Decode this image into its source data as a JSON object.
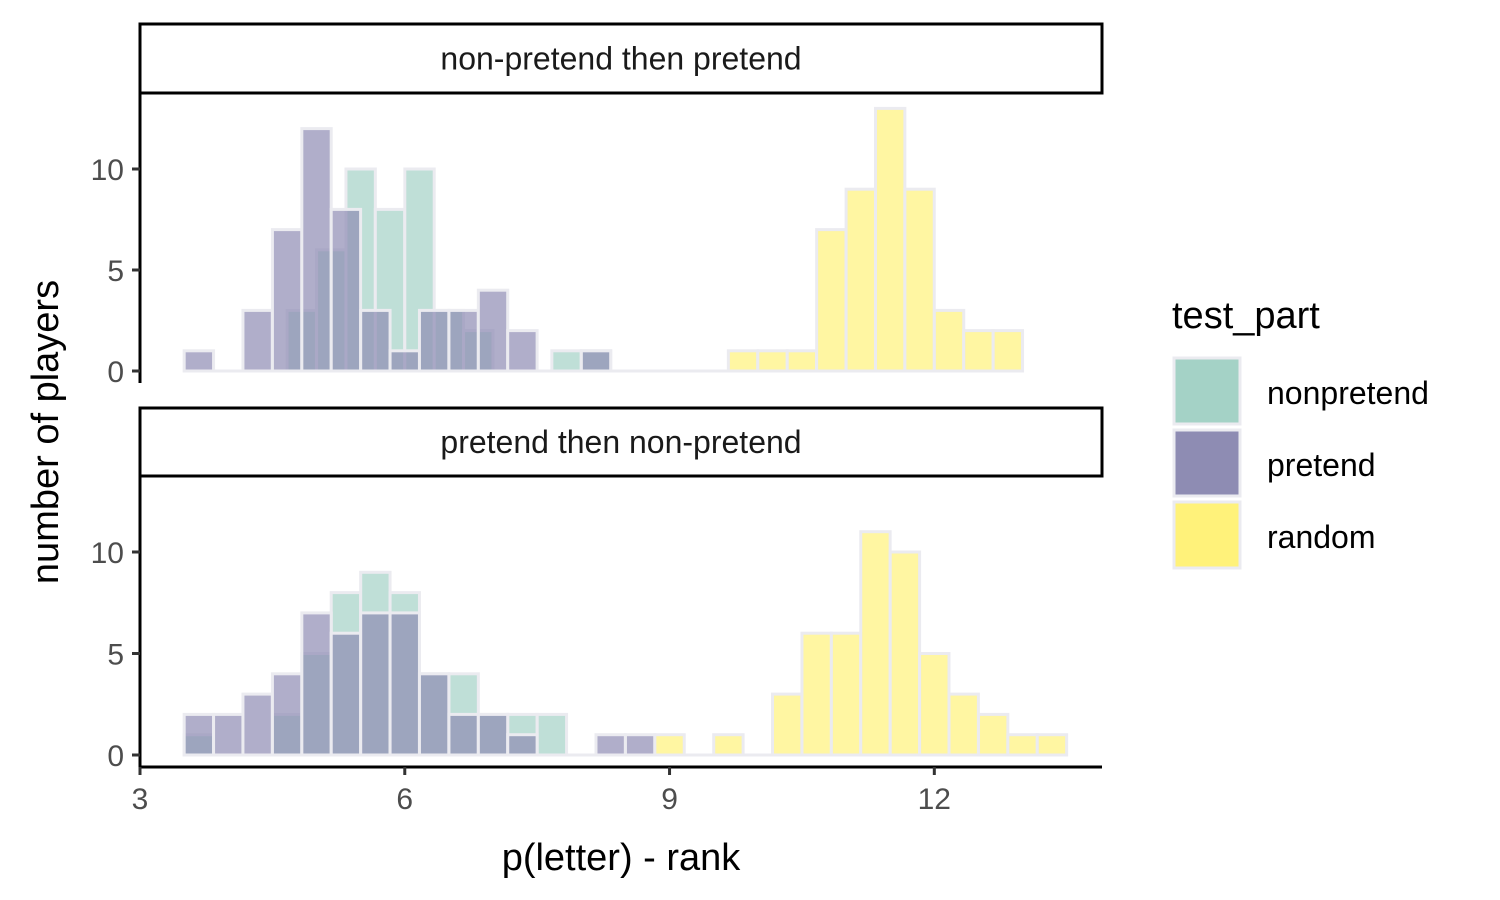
{
  "chart_data": {
    "type": "bar",
    "subtype": "overlapping histogram (faceted)",
    "xlabel": "p(letter) - rank",
    "ylabel": "number of players",
    "xlim": [
      3,
      13.9
    ],
    "ylim": [
      0,
      13.5
    ],
    "xticks": [
      3,
      6,
      9,
      12
    ],
    "yticks": [
      0,
      5,
      10
    ],
    "bin_width": 0.333,
    "grid": false,
    "legend": {
      "title": "test_part",
      "position": "right",
      "entries": [
        {
          "name": "nonpretend",
          "color": "#a4d2c6"
        },
        {
          "name": "pretend",
          "color": "#8e8cb3"
        },
        {
          "name": "random",
          "color": "#fff27a"
        }
      ]
    },
    "panels": [
      {
        "strip": "non-pretend then pretend",
        "series": [
          {
            "name": "nonpretend",
            "bins": [
              [
                4.833,
                3
              ],
              [
                5.167,
                6
              ],
              [
                5.5,
                10
              ],
              [
                5.833,
                8
              ],
              [
                6.167,
                10
              ],
              [
                6.5,
                3
              ],
              [
                6.833,
                2
              ],
              [
                7.167,
                0
              ],
              [
                7.833,
                1
              ],
              [
                8.167,
                1
              ]
            ]
          },
          {
            "name": "pretend",
            "bins": [
              [
                3.667,
                1
              ],
              [
                4.333,
                3
              ],
              [
                4.667,
                7
              ],
              [
                5.0,
                12
              ],
              [
                5.333,
                8
              ],
              [
                5.667,
                3
              ],
              [
                6.0,
                1
              ],
              [
                6.333,
                3
              ],
              [
                6.667,
                3
              ],
              [
                7.0,
                4
              ],
              [
                7.333,
                2
              ],
              [
                8.167,
                1
              ]
            ]
          },
          {
            "name": "random",
            "bins": [
              [
                9.833,
                1
              ],
              [
                10.167,
                1
              ],
              [
                10.5,
                1
              ],
              [
                10.833,
                7
              ],
              [
                11.167,
                9
              ],
              [
                11.5,
                13
              ],
              [
                11.833,
                9
              ],
              [
                12.167,
                3
              ],
              [
                12.5,
                2
              ],
              [
                12.833,
                2
              ]
            ]
          }
        ]
      },
      {
        "strip": "pretend then non-pretend",
        "series": [
          {
            "name": "nonpretend",
            "bins": [
              [
                3.667,
                1
              ],
              [
                4.667,
                2
              ],
              [
                5.0,
                5
              ],
              [
                5.333,
                8
              ],
              [
                5.667,
                9
              ],
              [
                6.0,
                8
              ],
              [
                6.333,
                4
              ],
              [
                6.667,
                4
              ],
              [
                7.0,
                2
              ],
              [
                7.333,
                2
              ],
              [
                7.667,
                2
              ]
            ]
          },
          {
            "name": "pretend",
            "bins": [
              [
                3.667,
                2
              ],
              [
                4.0,
                2
              ],
              [
                4.333,
                3
              ],
              [
                4.667,
                4
              ],
              [
                5.0,
                7
              ],
              [
                5.333,
                6
              ],
              [
                5.667,
                7
              ],
              [
                6.0,
                7
              ],
              [
                6.333,
                4
              ],
              [
                6.667,
                2
              ],
              [
                7.0,
                2
              ],
              [
                7.333,
                1
              ],
              [
                8.333,
                1
              ],
              [
                8.667,
                1
              ]
            ]
          },
          {
            "name": "random",
            "bins": [
              [
                9.0,
                1
              ],
              [
                9.667,
                1
              ],
              [
                10.333,
                3
              ],
              [
                10.667,
                6
              ],
              [
                11.0,
                6
              ],
              [
                11.333,
                11
              ],
              [
                11.667,
                10
              ],
              [
                12.0,
                5
              ],
              [
                12.333,
                3
              ],
              [
                12.667,
                2
              ],
              [
                13.0,
                1
              ],
              [
                13.333,
                1
              ]
            ]
          }
        ]
      }
    ]
  }
}
